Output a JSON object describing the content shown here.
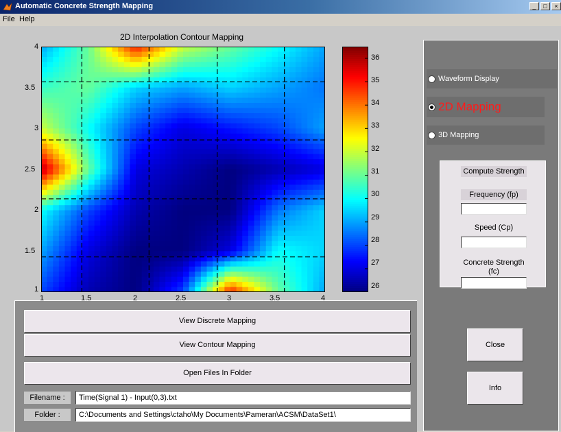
{
  "window": {
    "title": "Automatic Concrete Strength Mapping",
    "min": "_",
    "max": "□",
    "close": "×"
  },
  "menu": [
    "File",
    "Help"
  ],
  "plot": {
    "title": "2D Interpolation Contour Mapping",
    "x_ticks": [
      "1",
      "1.5",
      "2",
      "2.5",
      "3",
      "3.5",
      "4"
    ],
    "y_ticks": [
      "4",
      "3.5",
      "3",
      "2.5",
      "2",
      "1.5",
      "1"
    ],
    "colorbar_ticks": [
      "36",
      "35",
      "34",
      "33",
      "32",
      "31",
      "30",
      "29",
      "28",
      "27",
      "26"
    ]
  },
  "chart_data": {
    "type": "heatmap",
    "title": "2D Interpolation Contour Mapping",
    "xlim": [
      1,
      4
    ],
    "ylim": [
      1,
      4
    ],
    "x_ticks": [
      1,
      1.5,
      2,
      2.5,
      3,
      3.5,
      4
    ],
    "y_ticks": [
      1,
      1.5,
      2,
      2.5,
      3,
      3.5,
      4
    ],
    "colorbar": {
      "min": 26,
      "max": 36.5,
      "ticks": [
        26,
        27,
        28,
        29,
        30,
        31,
        32,
        33,
        34,
        35,
        36
      ]
    },
    "grid_x": [
      1.43,
      2.14,
      2.86,
      3.57
    ],
    "grid_y": [
      1.43,
      2.14,
      2.86,
      3.57
    ],
    "grid_style": "dashed",
    "values": [
      [
        29,
        31,
        35,
        32,
        31,
        30,
        29
      ],
      [
        30.5,
        31,
        29.5,
        29,
        29.5,
        29,
        28.5
      ],
      [
        32,
        30,
        28,
        27,
        27.5,
        28,
        29
      ],
      [
        36,
        31,
        27,
        26.5,
        26,
        26.5,
        27
      ],
      [
        30,
        28,
        26.5,
        26,
        26,
        28.5,
        29.5
      ],
      [
        29,
        27,
        26,
        26,
        27,
        30,
        29.5
      ],
      [
        28,
        26.5,
        26,
        28,
        35,
        31,
        29
      ]
    ]
  },
  "buttons": {
    "discrete": "View Discrete Mapping",
    "contour": "View Contour Mapping",
    "open": "Open Files In Folder",
    "close": "Close",
    "info": "Info"
  },
  "fields": {
    "filename_label": "Filename :",
    "filename_value": "Time(Signal 1) - Input(0,3).txt",
    "folder_label": "Folder :",
    "folder_value": "C:\\Documents and Settings\\ctaho\\My Documents\\Pameran\\ACSM\\DataSet1\\"
  },
  "modes": [
    {
      "label": "Waveform Display",
      "selected": false
    },
    {
      "label": "2D Mapping",
      "selected": true
    },
    {
      "label": "3D Mapping",
      "selected": false
    }
  ],
  "compute": {
    "title": "Compute Strength",
    "frequency_label": "Frequency (fp)",
    "speed_label": "Speed (Cp)",
    "strength_label_1": "Concrete Strength",
    "strength_label_2": "(fc)"
  }
}
